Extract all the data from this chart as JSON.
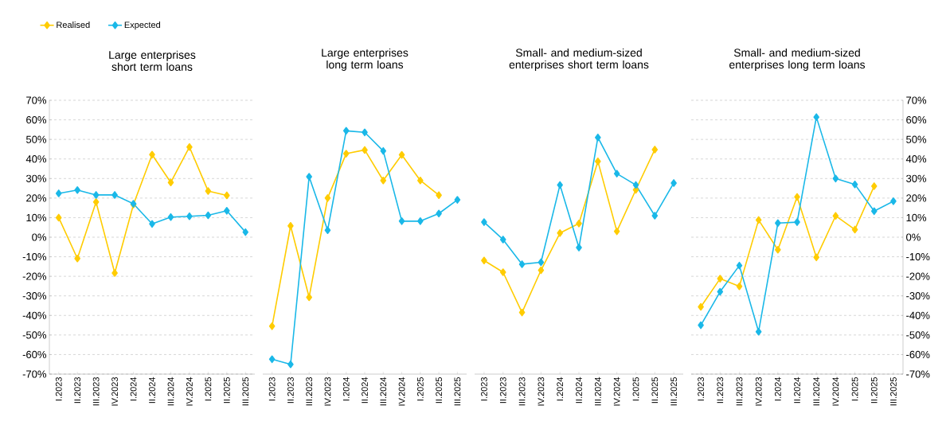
{
  "chart_data": [
    {
      "type": "line",
      "title": "Large enterprises short term loans",
      "categories": [
        "I.2023",
        "II.2023",
        "III.2023",
        "IV.2023",
        "I.2024",
        "II.2024",
        "III.2024",
        "IV.2024",
        "I.2025",
        "II.2025",
        "III.2025"
      ],
      "ylim": [
        -70,
        70
      ],
      "yticks": [
        {
          "value": -70,
          "label": "-70%"
        },
        {
          "value": -60,
          "label": "-60%"
        },
        {
          "value": -50,
          "label": "-50%"
        },
        {
          "value": -40,
          "label": "-40%"
        },
        {
          "value": -30,
          "label": "-30%"
        },
        {
          "value": -20,
          "label": "-20%"
        },
        {
          "value": -10,
          "label": "-10%"
        },
        {
          "value": 0,
          "label": "0%"
        },
        {
          "value": 10,
          "label": "10%"
        },
        {
          "value": 20,
          "label": "20%"
        },
        {
          "value": 30,
          "label": "30%"
        },
        {
          "value": 40,
          "label": "40%"
        },
        {
          "value": 50,
          "label": "50%"
        },
        {
          "value": 60,
          "label": "60%"
        },
        {
          "value": 70,
          "label": "70%"
        }
      ],
      "grid": "y",
      "marker": "diamond",
      "line_style": "solid",
      "legend": "top left",
      "series": [
        {
          "name": "Realised",
          "color": "#ffcc00",
          "values": [
            10,
            -10.9,
            18,
            -18.3,
            16.7,
            42.2,
            28,
            46.1,
            23.6,
            21.4,
            null
          ]
        },
        {
          "name": "Expected",
          "color": "#1ab8e8",
          "values": [
            22.4,
            24.1,
            21.6,
            21.6,
            17.1,
            6.8,
            10.3,
            10.7,
            11.2,
            13.5,
            2.6
          ]
        }
      ]
    },
    {
      "type": "line",
      "title": "Large enterprises long term loans",
      "categories": [
        "I.2023",
        "II.2023",
        "III.2023",
        "IV.2023",
        "I.2024",
        "II.2024",
        "III.2024",
        "IV.2024",
        "I.2025",
        "II.2025",
        "III.2025"
      ],
      "ylim": [
        -70,
        70
      ],
      "grid": "y",
      "marker": "diamond",
      "line_style": "solid",
      "tick_labels": "x",
      "series": [
        {
          "color": "#ffcc00",
          "values": [
            -45.5,
            5.8,
            -30.7,
            20,
            42.7,
            44.6,
            29,
            42.1,
            29,
            21.5,
            null
          ]
        },
        {
          "color": "#1ab8e8",
          "values": [
            -62.4,
            -65,
            30.9,
            3.6,
            54.4,
            53.6,
            44.1,
            8.2,
            8.2,
            12.1,
            19.1
          ]
        }
      ]
    },
    {
      "type": "line",
      "title": "Small- and medium-sized enterprises short term loans",
      "categories": [
        "I.2023",
        "II.2023",
        "III.2023",
        "IV.2023",
        "I.2024",
        "II.2024",
        "III.2024",
        "IV.2024",
        "I.2025",
        "II.2025",
        "III.2025"
      ],
      "ylim": [
        -70,
        70
      ],
      "grid": "y",
      "marker": "diamond",
      "line_style": "solid",
      "tick_labels": "x",
      "series": [
        {
          "color": "#ffcc00",
          "values": [
            -11.9,
            -17.9,
            -38.5,
            -16.9,
            2.1,
            7,
            38.8,
            3,
            24.2,
            44.8,
            null
          ]
        },
        {
          "color": "#1ab8e8",
          "values": [
            7.7,
            -1.2,
            -13.8,
            -12.8,
            26.7,
            -5.3,
            51,
            32.5,
            26.7,
            11,
            27.7
          ]
        }
      ]
    },
    {
      "type": "line",
      "title": "Small- and medium-sized enterprises long term loans",
      "categories": [
        "I.2023",
        "II.2023",
        "III.2023",
        "IV.2023",
        "I.2024",
        "II.2024",
        "III.2024",
        "IV.2024",
        "I.2025",
        "II.2025",
        "III.2025"
      ],
      "ylim": [
        -70,
        70
      ],
      "yticks": [
        {
          "value": -70,
          "label": "-70%"
        },
        {
          "value": -60,
          "label": "-60%"
        },
        {
          "value": -50,
          "label": "-50%"
        },
        {
          "value": -40,
          "label": "-40%"
        },
        {
          "value": -30,
          "label": "-30%"
        },
        {
          "value": -20,
          "label": "-20%"
        },
        {
          "value": -10,
          "label": "-10%"
        },
        {
          "value": 0,
          "label": "0%"
        },
        {
          "value": 10,
          "label": "10%"
        },
        {
          "value": 20,
          "label": "20%"
        },
        {
          "value": 30,
          "label": "30%"
        },
        {
          "value": 40,
          "label": "40%"
        },
        {
          "value": 50,
          "label": "50%"
        },
        {
          "value": 60,
          "label": "60%"
        },
        {
          "value": 70,
          "label": "70%"
        }
      ],
      "grid": "y",
      "marker": "diamond",
      "line_style": "solid",
      "series": [
        {
          "color": "#ffcc00",
          "values": [
            -35.6,
            -21.2,
            -25.1,
            8.8,
            -6.4,
            20.6,
            -10.3,
            10.9,
            3.9,
            26.1,
            null
          ]
        },
        {
          "color": "#1ab8e8",
          "values": [
            -45,
            -27.9,
            -14.5,
            -48.3,
            7.2,
            7.7,
            61.4,
            30,
            27,
            13.3,
            18.4
          ]
        }
      ]
    }
  ]
}
